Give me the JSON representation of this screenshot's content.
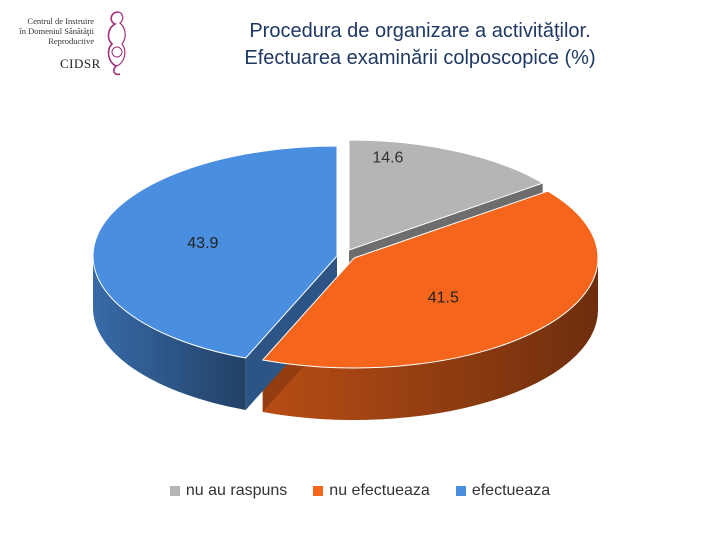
{
  "logo": {
    "lines": [
      "Centrul de Instruire",
      "în Domeniul Sănătăţii",
      "Reproductive"
    ],
    "abbr": "CIDSR"
  },
  "title": {
    "line1": "Procedura de organizare a activităţilor.",
    "line2": "Efectuarea examinării colposcopice (%)"
  },
  "chart_data": {
    "type": "pie",
    "style": "3d-exploded",
    "title": "",
    "labels": [
      "nu au raspuns",
      "nu efectueaza",
      "efectueaza"
    ],
    "values": [
      14.6,
      41.5,
      43.9
    ],
    "value_labels": [
      "14.6",
      "41.5",
      "43.9"
    ],
    "colors": [
      "#b5b5b5",
      "#f5661c",
      "#4a8ee0"
    ],
    "legend_position": "bottom"
  }
}
